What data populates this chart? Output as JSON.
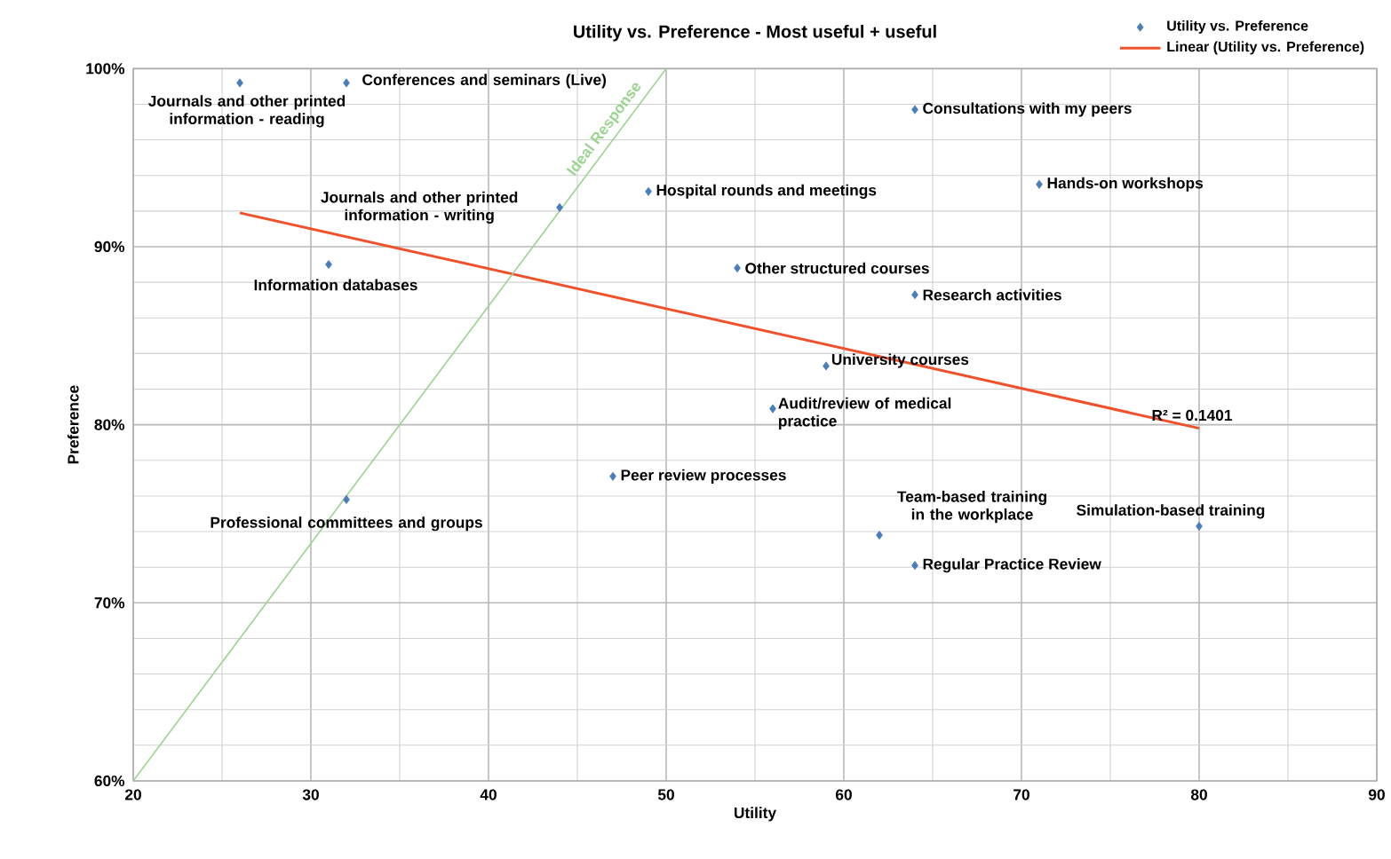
{
  "chart_data": {
    "type": "scatter",
    "title": "Utility vs. Preference - Most useful + useful",
    "xlabel": "Utility",
    "ylabel": "Preference",
    "xlim": [
      20,
      90
    ],
    "ylim": [
      60,
      100
    ],
    "xticks": [
      20,
      30,
      40,
      50,
      60,
      70,
      80,
      90
    ],
    "yticks": [
      {
        "value": 60,
        "label": "60%"
      },
      {
        "value": 70,
        "label": "70%"
      },
      {
        "value": 80,
        "label": "80%"
      },
      {
        "value": 90,
        "label": "90%"
      },
      {
        "value": 100,
        "label": "100%"
      }
    ],
    "grid": true,
    "legend": "top right",
    "series": [
      {
        "name": "Utility vs. Preference",
        "marker": "diamond",
        "color": "#4a7ebb",
        "x": [
          26,
          32,
          64,
          71,
          49,
          44,
          31,
          54,
          64,
          59,
          56,
          47,
          32,
          80,
          62,
          64
        ],
        "values": [
          99.2,
          99.2,
          97.7,
          93.5,
          93.1,
          92.2,
          89.0,
          88.8,
          87.3,
          83.3,
          80.9,
          77.1,
          75.8,
          74.3,
          73.8,
          72.1
        ]
      },
      {
        "name": "Linear (Utility vs. Preference)",
        "type": "line",
        "marker": "none",
        "color": "#f0502a",
        "x": [
          26,
          80
        ],
        "values": [
          91.9,
          79.8
        ]
      },
      {
        "type": "line",
        "marker": "none",
        "color": "#9bd48f",
        "x": [
          20,
          50
        ],
        "values": [
          60,
          100
        ]
      }
    ],
    "annotations": [
      {
        "text": "Journals and other printed information - reading",
        "x": 26,
        "y": 99.2
      },
      {
        "text": "Conferences and seminars (Live)",
        "x": 32,
        "y": 99.2
      },
      {
        "text": "Consultations with my peers",
        "x": 64,
        "y": 97.7
      },
      {
        "text": "Hands-on workshops",
        "x": 71,
        "y": 93.5
      },
      {
        "text": "Hospital rounds and meetings",
        "x": 49,
        "y": 93.1
      },
      {
        "text": "Journals and other printed information - writing",
        "x": 44,
        "y": 92.2
      },
      {
        "text": "Information databases",
        "x": 31,
        "y": 89.0
      },
      {
        "text": "Other structured courses",
        "x": 54,
        "y": 88.8
      },
      {
        "text": "Research activities",
        "x": 64,
        "y": 87.3
      },
      {
        "text": "University courses",
        "x": 59,
        "y": 83.3
      },
      {
        "text": "Audit/review of medical practice",
        "x": 56,
        "y": 80.9
      },
      {
        "text": "Peer review processes",
        "x": 47,
        "y": 77.1
      },
      {
        "text": "Professional committees and groups",
        "x": 32,
        "y": 75.8
      },
      {
        "text": "Simulation-based training",
        "x": 80,
        "y": 74.3
      },
      {
        "text": "Team-based training in the workplace",
        "x": 62,
        "y": 73.8
      },
      {
        "text": "Regular Practice Review",
        "x": 64,
        "y": 72.1
      },
      {
        "text": "R² = 0.1401",
        "x": 80,
        "y": 79.8
      },
      {
        "text": "Ideal Response",
        "x": 47,
        "y": 96
      }
    ]
  }
}
